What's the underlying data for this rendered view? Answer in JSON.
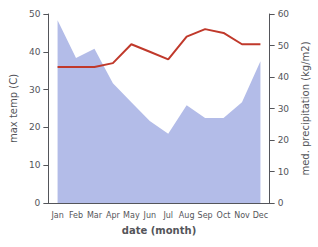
{
  "chart_data": {
    "type": "line",
    "categories": [
      "Jan",
      "Feb",
      "Mar",
      "Apr",
      "May",
      "Jun",
      "Jul",
      "Aug",
      "Sep",
      "Oct",
      "Nov",
      "Dec"
    ],
    "xlabel": "date (month)",
    "ylabel": "max temp (C)",
    "y2label": "med. precipitation (kg/m2)",
    "ylim": [
      0,
      50
    ],
    "yticks": [
      0,
      10,
      20,
      30,
      40,
      50
    ],
    "y2lim": [
      0,
      60
    ],
    "y2ticks": [
      0,
      10,
      20,
      30,
      40,
      50,
      60
    ],
    "grid": false,
    "series": [
      {
        "type": "area",
        "axis": "y2",
        "color": "#b3bce8",
        "values": [
          58,
          46,
          49,
          38,
          32,
          26,
          22,
          31,
          27,
          27,
          32,
          45
        ]
      },
      {
        "type": "line",
        "color": "#c0392b",
        "values": [
          36,
          36,
          36,
          37,
          42,
          40,
          38,
          44,
          46,
          45,
          42,
          42
        ]
      }
    ]
  }
}
